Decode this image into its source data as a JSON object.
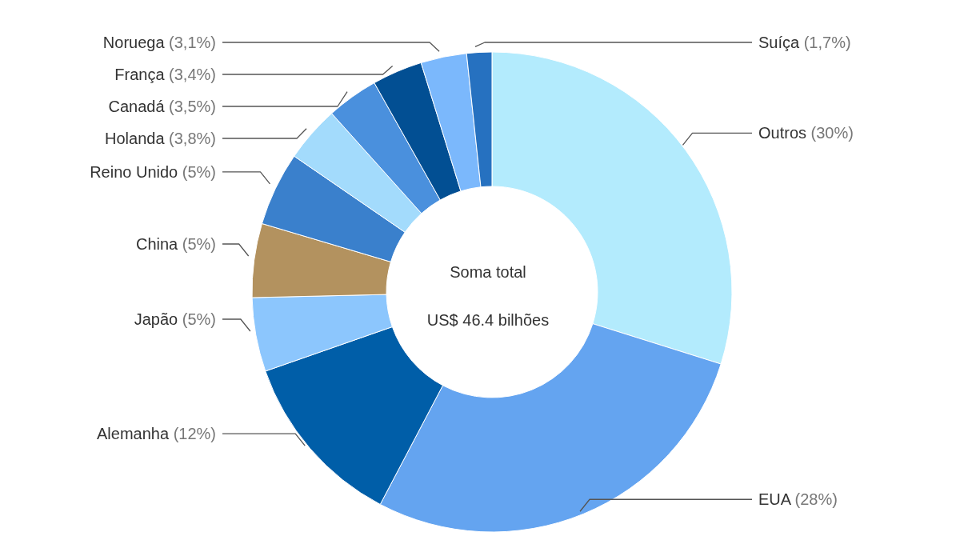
{
  "chart_data": {
    "type": "donut",
    "categories": [
      "Outros",
      "EUA",
      "Alemanha",
      "Japão",
      "China",
      "Reino Unido",
      "Holanda",
      "Canadá",
      "França",
      "Noruega",
      "Suíça"
    ],
    "values": [
      30,
      28,
      12,
      5,
      5,
      5,
      3.8,
      3.5,
      3.4,
      3.1,
      1.7
    ],
    "value_labels": [
      "(30%)",
      "(28%)",
      "(12%)",
      "(5%)",
      "(5%)",
      "(5%)",
      "(3,8%)",
      "(3,5%)",
      "(3,4%)",
      "(3,1%)",
      "(1,7%)"
    ],
    "colors": [
      "#b3ebfd",
      "#64a4f0",
      "#005ea8",
      "#8cc6fd",
      "#b3925f",
      "#3a80cc",
      "#a3dbfc",
      "#4a90dd",
      "#024f93",
      "#7bb8fc",
      "#2671c0"
    ],
    "annotations": [
      "Soma total",
      "US$ 46.4 bilhões"
    ],
    "legend": false
  }
}
